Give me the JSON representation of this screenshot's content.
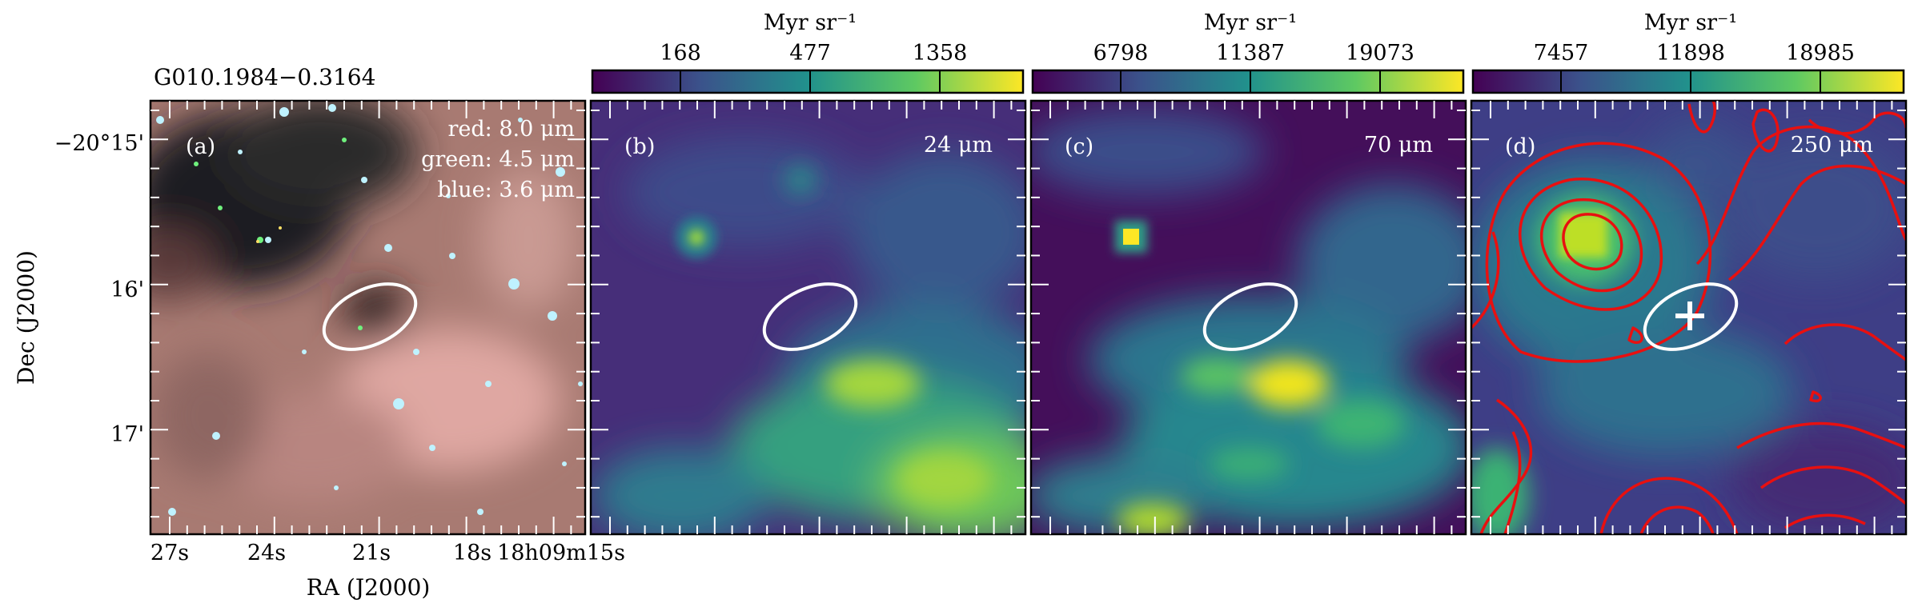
{
  "figure": {
    "source_name": "G010.1984−0.3164",
    "y_axis_label": "Dec (J2000)",
    "x_axis_label": "RA (J2000)",
    "dec_ticks": [
      "−20°15'",
      "16'",
      "17'"
    ],
    "ra_ticks": [
      "27s",
      "24s",
      "21s",
      "18s",
      "18h09m15s"
    ]
  },
  "colors": {
    "ellipse": "#ffffff",
    "contour": "#e81010",
    "cross": "#ffffff",
    "colormap": [
      "#440154",
      "#3b528b",
      "#21918c",
      "#5ec962",
      "#fde725"
    ]
  },
  "panels": [
    {
      "id": "a",
      "label": "(a)",
      "legend": [
        "red: 8.0 μm",
        "green: 4.5 μm",
        "blue: 3.6 μm"
      ],
      "image": "three-color-irac-composite"
    },
    {
      "id": "b",
      "label": "(b)",
      "band": "24 μm",
      "colorbar": {
        "unit": "Myr sr⁻¹",
        "ticks": [
          "168",
          "477",
          "1358"
        ]
      },
      "image": "mips-24um-viridis"
    },
    {
      "id": "c",
      "label": "(c)",
      "band": "70 μm",
      "colorbar": {
        "unit": "Myr sr⁻¹",
        "ticks": [
          "6798",
          "11387",
          "19073"
        ]
      },
      "image": "pacs-70um-viridis"
    },
    {
      "id": "d",
      "label": "(d)",
      "band": "250 μm",
      "colorbar": {
        "unit": "Myr sr⁻¹",
        "ticks": [
          "7457",
          "11898",
          "18985"
        ]
      },
      "image": "spire-250um-viridis-with-contours"
    }
  ]
}
